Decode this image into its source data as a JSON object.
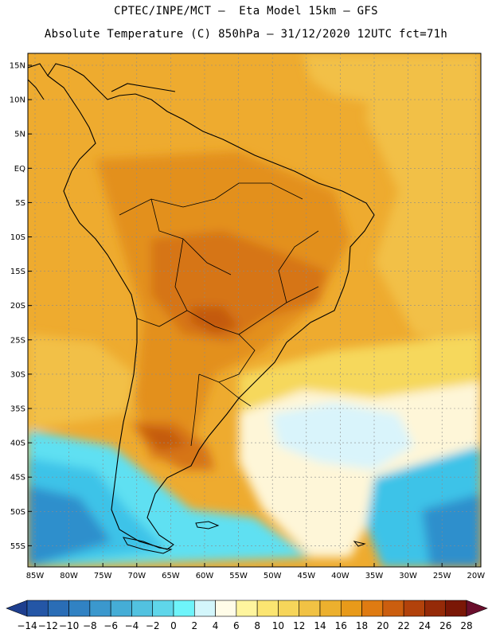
{
  "header": {
    "line1": "CPTEC/INPE/MCT –  Eta Model 15km – GFS",
    "line2": "Absolute Temperature (C) 850hPa – 31/12/2020 12UTC fct=71h"
  },
  "map": {
    "lat_ticks": [
      "15N",
      "10N",
      "5N",
      "EQ",
      "5S",
      "10S",
      "15S",
      "20S",
      "25S",
      "30S",
      "35S",
      "40S",
      "45S",
      "50S",
      "55S"
    ],
    "lon_ticks": [
      "85W",
      "80W",
      "75W",
      "70W",
      "65W",
      "60W",
      "55W",
      "50W",
      "45W",
      "40W",
      "35W",
      "30W",
      "25W",
      "20W"
    ],
    "colors": {
      "warm_deep": "#e3901e",
      "warm_main": "#eeab2f",
      "warm_light": "#f2c046",
      "hot": "#d67416",
      "hotter": "#c45a10",
      "yellow": "#f6d85c",
      "pale": "#fef6d8",
      "ice": "#d9f4fb",
      "cyan": "#5fe0f2",
      "sky": "#3ec3e8",
      "blue": "#2e8fcc",
      "coast": "#000000"
    }
  },
  "colorbar": {
    "labels": [
      "-14",
      "-12",
      "-10",
      "-8",
      "-6",
      "-4",
      "-2",
      "0",
      "2",
      "4",
      "6",
      "8",
      "10",
      "12",
      "14",
      "16",
      "18",
      "20",
      "22",
      "24",
      "26",
      "28"
    ],
    "colors": [
      "#1e3f8f",
      "#2456a6",
      "#2a6db6",
      "#3182c3",
      "#3b98cd",
      "#45add6",
      "#52c2e0",
      "#5fd6ea",
      "#6ef4fa",
      "#d3f6fb",
      "#fffce8",
      "#fef59e",
      "#fbe571",
      "#f6d55a",
      "#f1c244",
      "#ecb02e",
      "#e89a1a",
      "#df7b12",
      "#cb5e0f",
      "#b2420b",
      "#952a08",
      "#7a1706",
      "#6a0e2c"
    ]
  }
}
